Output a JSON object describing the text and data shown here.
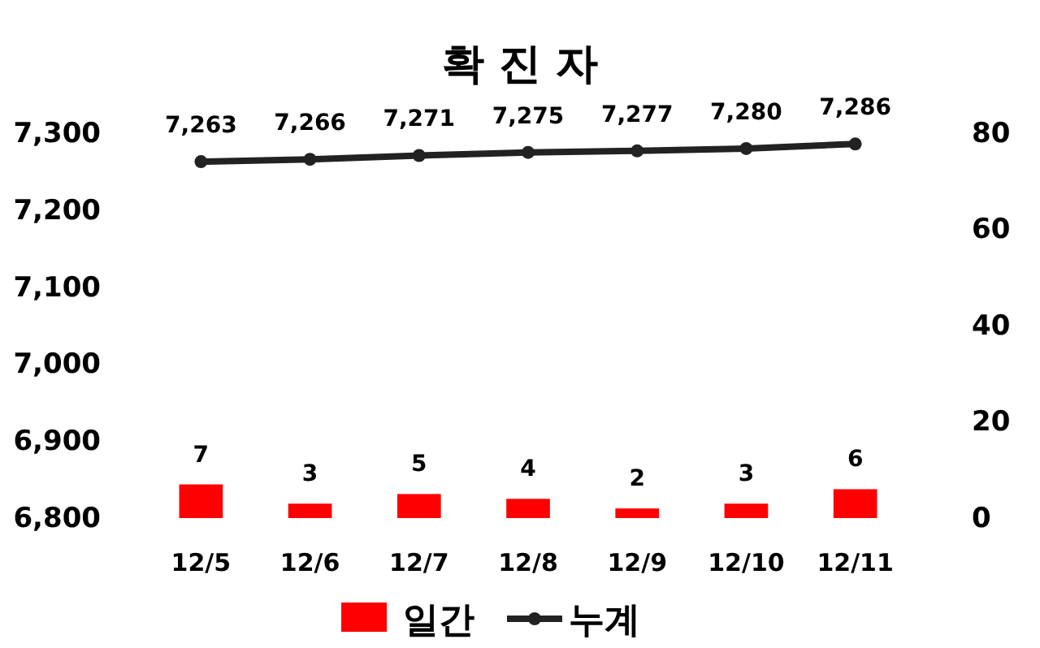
{
  "chart_data": {
    "type": "bar",
    "title": "확 진 자",
    "categories": [
      "12/5",
      "12/6",
      "12/7",
      "12/8",
      "12/9",
      "12/10",
      "12/11"
    ],
    "series": [
      {
        "name": "일간",
        "axis": "y2",
        "color": "#ff0000",
        "values": [
          7,
          3,
          5,
          4,
          2,
          3,
          6
        ],
        "value_labels": [
          "7",
          "3",
          "5",
          "4",
          "2",
          "3",
          "6"
        ]
      },
      {
        "name": "누계",
        "type": "line",
        "color": "#222222",
        "values": [
          7263,
          7266,
          7271,
          7275,
          7277,
          7280,
          7286
        ],
        "value_labels": [
          "7,263",
          "7,266",
          "7,271",
          "7,275",
          "7,277",
          "7,280",
          "7,286"
        ]
      }
    ],
    "ylim": [
      6800,
      7300
    ],
    "yticks": [
      {
        "value": 6800,
        "label": "6,800"
      },
      {
        "value": 6900,
        "label": "6,900"
      },
      {
        "value": 7000,
        "label": "7,000"
      },
      {
        "value": 7100,
        "label": "7,100"
      },
      {
        "value": 7200,
        "label": "7,200"
      },
      {
        "value": 7300,
        "label": "7,300"
      }
    ],
    "y2lim": [
      0,
      80
    ],
    "y2ticks": [
      0,
      20,
      40,
      60,
      80
    ],
    "legend": "bottom",
    "marker": "circle",
    "grid": false
  }
}
